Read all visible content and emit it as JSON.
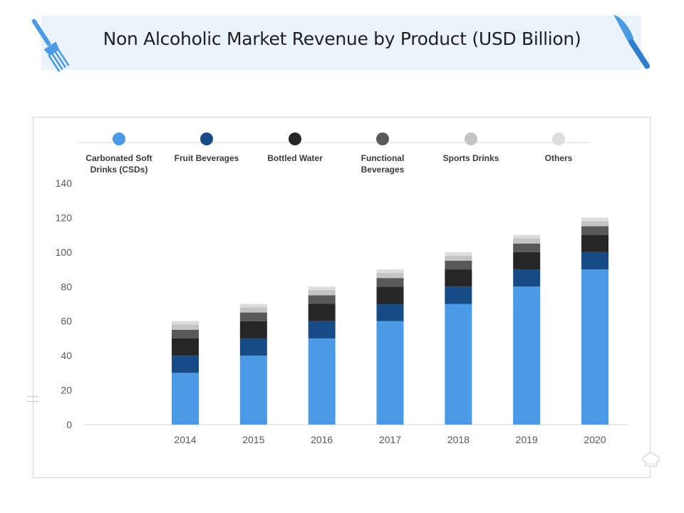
{
  "title": "Non Alcoholic Market Revenue by Product (USD Billion)",
  "icons": {
    "fork": "fork-icon",
    "knife": "knife-icon",
    "chef_hat": "chef-hat-icon"
  },
  "colors": {
    "banner": "#eaf3fb",
    "accent": "#4a9ae5",
    "series": [
      "#4a9ae5",
      "#164b86",
      "#262626",
      "#595959",
      "#c4c4c4",
      "#dcdcdc"
    ]
  },
  "chart_data": {
    "type": "bar",
    "stacked": true,
    "title": "Non Alcoholic Market Revenue by Product (USD Billion)",
    "xlabel": "",
    "ylabel": "",
    "categories": [
      "2014",
      "2015",
      "2016",
      "2017",
      "2018",
      "2019",
      "2020"
    ],
    "ylim": [
      0,
      140
    ],
    "yticks": [
      0,
      20,
      40,
      60,
      80,
      100,
      120,
      140
    ],
    "legend_position": "top",
    "grid": false,
    "series": [
      {
        "name": "Carbonated Soft Drinks (CSDs)",
        "color": "#4a9ae5",
        "values": [
          30,
          40,
          50,
          60,
          70,
          80,
          90
        ]
      },
      {
        "name": "Fruit Beverages",
        "color": "#164b86",
        "values": [
          10,
          10,
          10,
          10,
          10,
          10,
          10
        ]
      },
      {
        "name": "Bottled Water",
        "color": "#262626",
        "values": [
          10,
          10,
          10,
          10,
          10,
          10,
          10
        ]
      },
      {
        "name": "Functional Beverages",
        "color": "#595959",
        "values": [
          5,
          5,
          5,
          5,
          5,
          5,
          5
        ]
      },
      {
        "name": "Sports Drinks",
        "color": "#c4c4c4",
        "values": [
          3,
          3,
          3,
          3,
          3,
          3,
          3
        ]
      },
      {
        "name": "Others",
        "color": "#dcdcdc",
        "values": [
          2,
          2,
          2,
          2,
          2,
          2,
          2
        ]
      }
    ]
  }
}
